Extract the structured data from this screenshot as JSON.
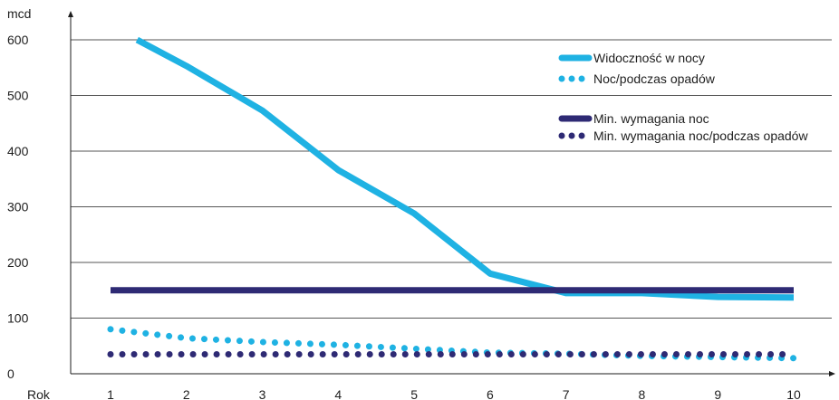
{
  "chart_data": {
    "type": "line",
    "title": "",
    "ylabel": "mcd",
    "xlabel": "Rok",
    "ylim": [
      0,
      600
    ],
    "yticks": [
      0,
      100,
      200,
      300,
      400,
      500,
      600
    ],
    "xticks": [
      1,
      2,
      3,
      4,
      5,
      6,
      7,
      8,
      9,
      10
    ],
    "xlim": [
      1,
      10
    ],
    "grid": true,
    "legend_position": "top-right",
    "series": [
      {
        "name": "Widoczność w nocy",
        "style": "solid",
        "color": "#1fb2e3",
        "x": [
          1.35,
          2,
          3,
          4,
          5,
          6,
          7,
          8,
          9,
          10
        ],
        "y": [
          600,
          553,
          473,
          366,
          288,
          180,
          145,
          145,
          138,
          137
        ]
      },
      {
        "name": "Noc/podczas opadów",
        "style": "dotted",
        "color": "#1fb2e3",
        "x": [
          1,
          2,
          3,
          4,
          5,
          6,
          7,
          8,
          9,
          10
        ],
        "y": [
          80,
          64,
          57,
          52,
          45,
          38,
          36,
          32,
          30,
          28
        ]
      },
      {
        "name": "Min. wymagania noc",
        "style": "solid",
        "color": "#2e2a74",
        "x": [
          1,
          10
        ],
        "y": [
          150,
          150
        ]
      },
      {
        "name": "Min. wymagania noc/podczas opadów",
        "style": "dotted",
        "color": "#2e2a74",
        "x": [
          1,
          10
        ],
        "y": [
          35,
          35
        ]
      }
    ]
  }
}
